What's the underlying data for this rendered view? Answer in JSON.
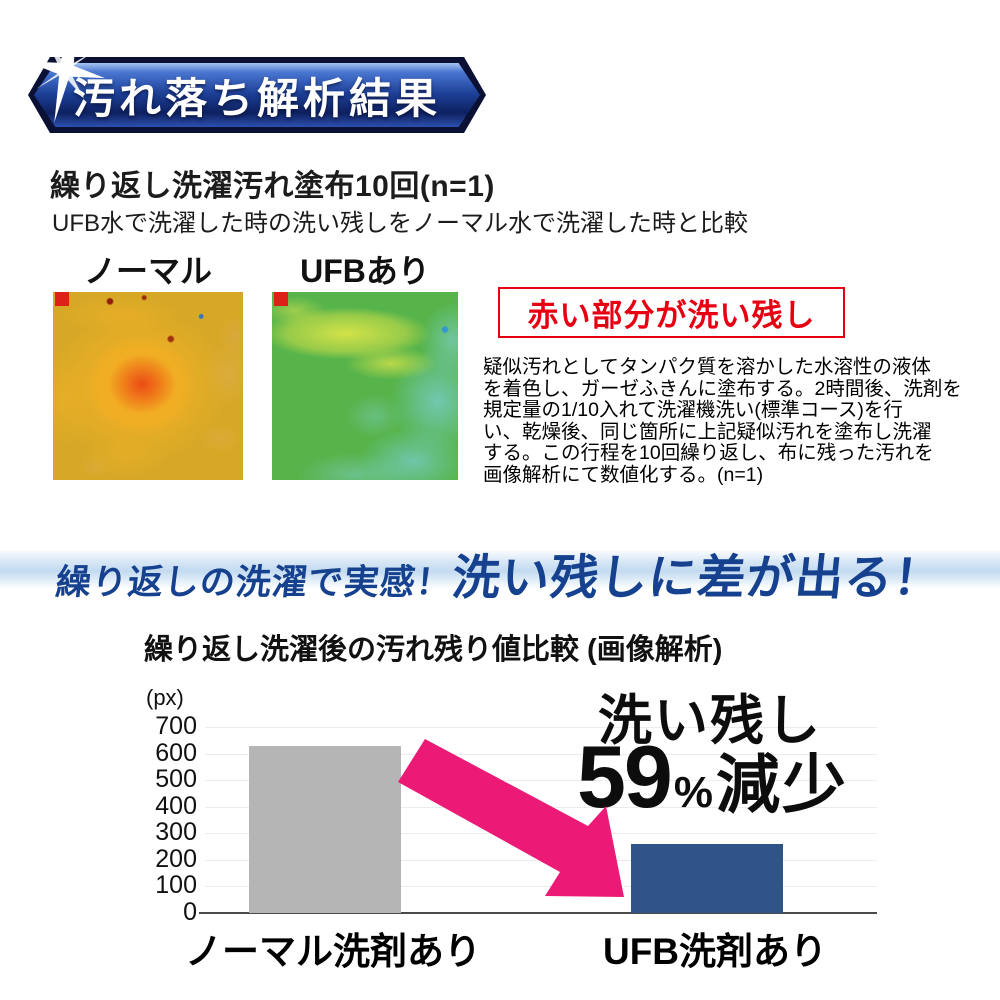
{
  "header": {
    "banner_label": "汚れ落ち解析結果"
  },
  "intro": {
    "title": "繰り返し洗濯汚れ塗布10回(n=1)",
    "subtitle": "UFB水で洗濯した時の洗い残しをノーマル水で洗濯した時と比較"
  },
  "comparison": {
    "left_label": "ノーマル",
    "right_label": "UFBあり",
    "note_box": "赤い部分が洗い残し",
    "method_text": "疑似汚れとしてタンパク質を溶かした水溶性の液体\nを着色し、ガーゼふきんに塗布する。2時間後、洗剤を\n規定量の1/10入れて洗濯機洗い(標準コース)を行\nい、乾燥後、同じ箇所に上記疑似汚れを塗布し洗濯\nする。この行程を10回繰り返し、布に残った汚れを\n画像解析にて数値化する。(n=1)",
    "legend_colors": {
      "residue_red": "#e23a1e",
      "clean_green": "#5bb54a",
      "cool_cyan": "#7accd6",
      "warn_yellow": "#e9e74a"
    }
  },
  "tagline": {
    "small": "繰り返しの洗濯で実感！",
    "large": "洗い残しに差が出る！"
  },
  "chart_data": {
    "type": "bar",
    "title": "繰り返し洗濯後の汚れ残り値比較 (画像解析)",
    "unit_label": "(px)",
    "categories": [
      "ノーマル洗剤あり",
      "UFB洗剤あり"
    ],
    "values": [
      630,
      258
    ],
    "bar_colors": [
      "#b5b5b5",
      "#2f5488"
    ],
    "ylim": [
      0,
      700
    ],
    "ytick_step": 100,
    "grid": true,
    "legend": "none",
    "annotation": {
      "headline": "洗い残し",
      "figure": "59",
      "unit": "%",
      "word": "減少"
    }
  },
  "colors": {
    "banner_navy": "#0e2160",
    "accent_red": "#e60012",
    "tagline_blue": "#16418f",
    "bar_gray": "#b5b5b5",
    "bar_blue": "#2f5488",
    "arrow_pink": "#ec1a77"
  }
}
